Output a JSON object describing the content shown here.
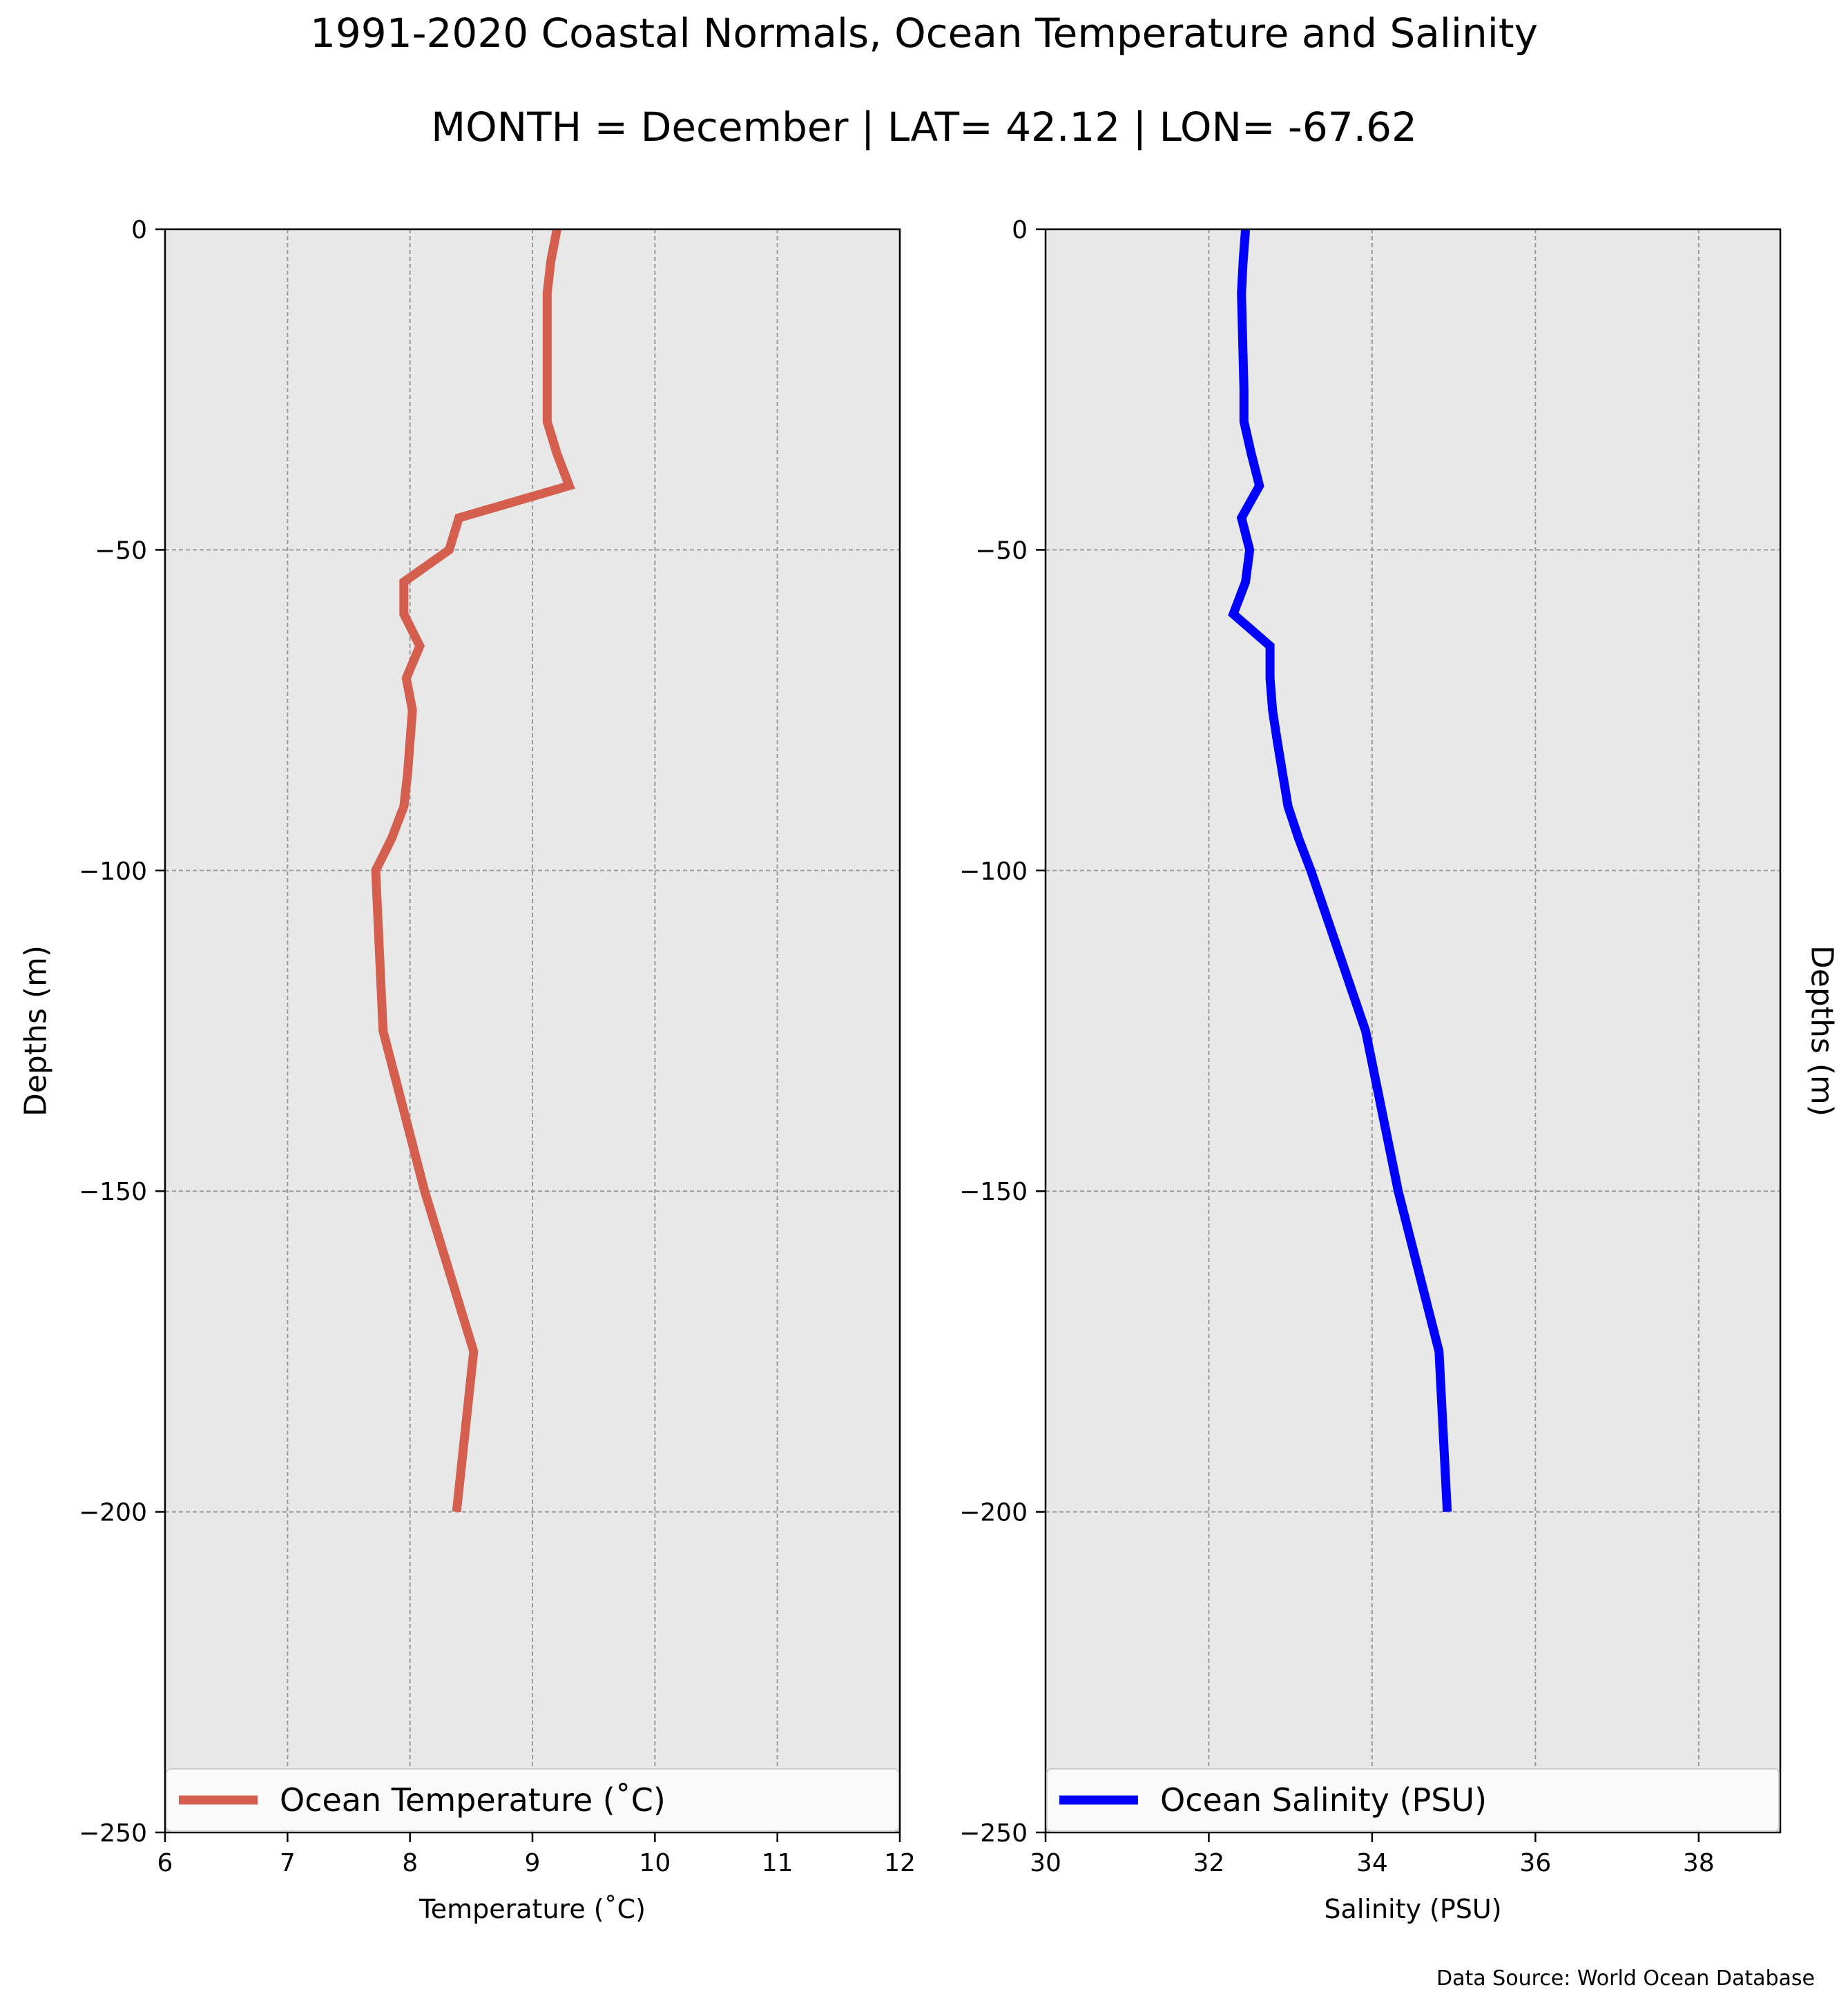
{
  "title": "1991-2020 Coastal Normals, Ocean Temperature and Salinity",
  "subtitle": "MONTH = December | LAT= 42.12 | LON= -67.62",
  "source_note": "Data Source: World Ocean Database",
  "chart_data": [
    {
      "type": "line",
      "xlabel": "Temperature ($^\\circ$C)",
      "xlabel_display": "Temperature (˚C)",
      "ylabel": "Depths (m)",
      "xlim": [
        6,
        12
      ],
      "ylim": [
        -250,
        0
      ],
      "xticks": [
        6,
        7,
        8,
        9,
        10,
        11,
        12
      ],
      "yticks": [
        0,
        -50,
        -100,
        -150,
        -200,
        -250
      ],
      "ytick_labels": [
        "0",
        "−50",
        "−100",
        "−150",
        "−200",
        "−250"
      ],
      "grid": true,
      "legend_position": "lower center",
      "background": "#e8e8e8",
      "series": [
        {
          "name": "Ocean Temperature (˚C)",
          "color": "#d45f4e",
          "x": [
            9.2,
            9.15,
            9.12,
            9.12,
            9.12,
            9.12,
            9.12,
            9.2,
            9.3,
            8.4,
            8.32,
            7.95,
            7.95,
            8.08,
            7.97,
            8.02,
            7.98,
            7.95,
            7.85,
            7.72,
            7.78,
            8.12,
            8.52,
            8.38
          ],
          "y": [
            0,
            -5,
            -10,
            -15,
            -20,
            -25,
            -30,
            -35,
            -40,
            -45,
            -50,
            -55,
            -60,
            -65,
            -70,
            -75,
            -85,
            -90,
            -95,
            -100,
            -125,
            -150,
            -175,
            -200
          ]
        }
      ]
    },
    {
      "type": "line",
      "xlabel": "Salinity (PSU)",
      "ylabel": "Depths (m)",
      "xlim": [
        30,
        39
      ],
      "ylim": [
        -250,
        0
      ],
      "xticks": [
        30,
        32,
        34,
        36,
        38
      ],
      "yticks": [
        0,
        -50,
        -100,
        -150,
        -200,
        -250
      ],
      "ytick_labels": [
        "0",
        "−50",
        "−100",
        "−150",
        "−200",
        "−250"
      ],
      "grid": true,
      "legend_position": "lower center",
      "background": "#e8e8e8",
      "series": [
        {
          "name": "Ocean Salinity (PSU)",
          "color": "#0000ff",
          "x": [
            32.45,
            32.42,
            32.4,
            32.41,
            32.42,
            32.43,
            32.43,
            32.52,
            32.62,
            32.4,
            32.5,
            32.45,
            32.3,
            32.75,
            32.75,
            32.78,
            32.84,
            32.97,
            33.1,
            33.25,
            33.92,
            34.32,
            34.82,
            34.92
          ],
          "y": [
            0,
            -5,
            -10,
            -15,
            -20,
            -25,
            -30,
            -35,
            -40,
            -45,
            -50,
            -55,
            -60,
            -65,
            -70,
            -75,
            -80,
            -90,
            -95,
            -100,
            -125,
            -150,
            -175,
            -200
          ]
        }
      ]
    }
  ]
}
